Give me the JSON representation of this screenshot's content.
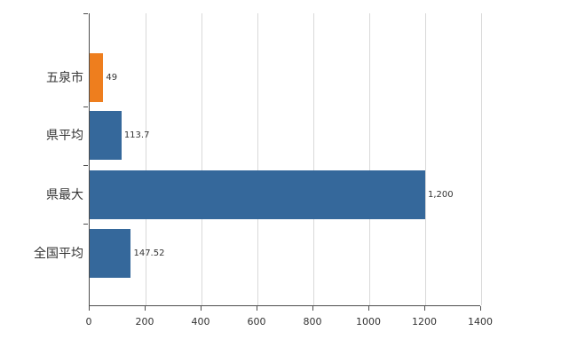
{
  "chart_data": {
    "type": "bar",
    "orientation": "horizontal",
    "title": "",
    "xlabel": "",
    "ylabel": "",
    "categories": [
      "五泉市",
      "県平均",
      "県最大",
      "全国平均"
    ],
    "values": [
      49,
      113.7,
      1200,
      147.52
    ],
    "value_labels": [
      "49",
      "113.7",
      "1,200",
      "147.52"
    ],
    "bar_colors": [
      "#ee7e1e",
      "#35689b",
      "#35689b",
      "#35689b"
    ],
    "xlim": [
      0,
      1400
    ],
    "x_ticks": [
      0,
      200,
      400,
      600,
      800,
      1000,
      1200,
      1400
    ],
    "grid": true,
    "legend": "none"
  },
  "colors": {
    "gridline": "#d9d9d9",
    "axis": "#4d4d4d",
    "text": "#333333",
    "background": "#ffffff"
  }
}
